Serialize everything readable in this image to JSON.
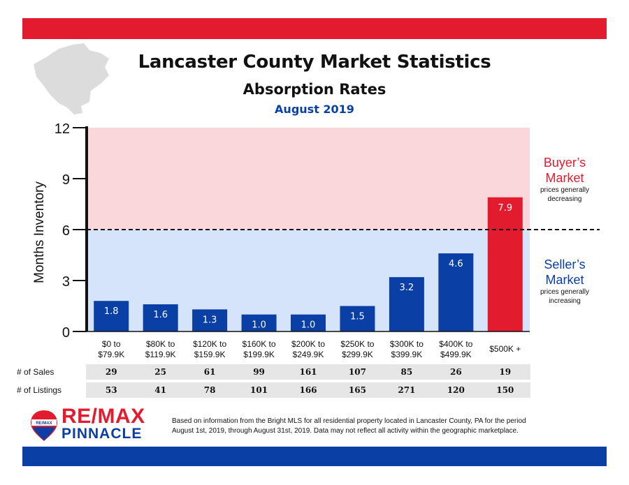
{
  "header": {
    "title": "Lancaster County Market Statistics",
    "subtitle": "Absorption Rates",
    "date": "August 2019"
  },
  "colors": {
    "red": "#e31b2f",
    "blue": "#0a3fa6",
    "buyer_zone": "#f9d7da",
    "seller_zone": "#d6e4fb",
    "map_gray": "#dcdcdc"
  },
  "zones": {
    "buyer": {
      "title_line1": "Buyer’s",
      "title_line2": "Market",
      "note_line1": "prices generally",
      "note_line2": "decreasing"
    },
    "seller": {
      "title_line1": "Seller’s",
      "title_line2": "Market",
      "note_line1": "prices generally",
      "note_line2": "increasing"
    }
  },
  "chart_data": {
    "type": "bar",
    "ylabel": "Months Inventory",
    "ylim": [
      0,
      12
    ],
    "yticks": [
      0,
      3,
      6,
      9,
      12
    ],
    "threshold": 6,
    "categories": [
      [
        "$0 to",
        "$79.9K"
      ],
      [
        "$80K to",
        "$119.9K"
      ],
      [
        "$120K to",
        "$159.9K"
      ],
      [
        "$160K to",
        "$199.9K"
      ],
      [
        "$200K to",
        "$249.9K"
      ],
      [
        "$250K to",
        "$299.9K"
      ],
      [
        "$300K to",
        "$399.9K"
      ],
      [
        "$400K to",
        "$499.9K"
      ],
      [
        "$500K +"
      ]
    ],
    "values": [
      1.8,
      1.6,
      1.3,
      1.0,
      1.0,
      1.5,
      3.2,
      4.6,
      7.9
    ],
    "value_labels": [
      "1.8",
      "1.6",
      "1.3",
      "1.0",
      "1.0",
      "1.5",
      "3.2",
      "4.6",
      "7.9"
    ],
    "bar_colors": [
      "#0a3fa6",
      "#0a3fa6",
      "#0a3fa6",
      "#0a3fa6",
      "#0a3fa6",
      "#0a3fa6",
      "#0a3fa6",
      "#0a3fa6",
      "#e31b2f"
    ],
    "grid": false
  },
  "table": {
    "rows": [
      {
        "label": "# of Sales",
        "values": [
          "29",
          "25",
          "61",
          "99",
          "161",
          "107",
          "85",
          "26",
          "19"
        ]
      },
      {
        "label": "# of Listings",
        "values": [
          "53",
          "41",
          "78",
          "101",
          "166",
          "165",
          "271",
          "120",
          "150"
        ]
      }
    ]
  },
  "logo": {
    "badge_text": "RE/MAX",
    "brand": "RE/MAX",
    "office": "PINNACLE"
  },
  "footnote": {
    "line1": "Based on information from the Bright MLS for all residential property located in Lancaster County, PA for the period",
    "line2": "August 1st, 2019, through August 31st, 2019.  Data may not reflect all activity within the geographic marketplace."
  }
}
